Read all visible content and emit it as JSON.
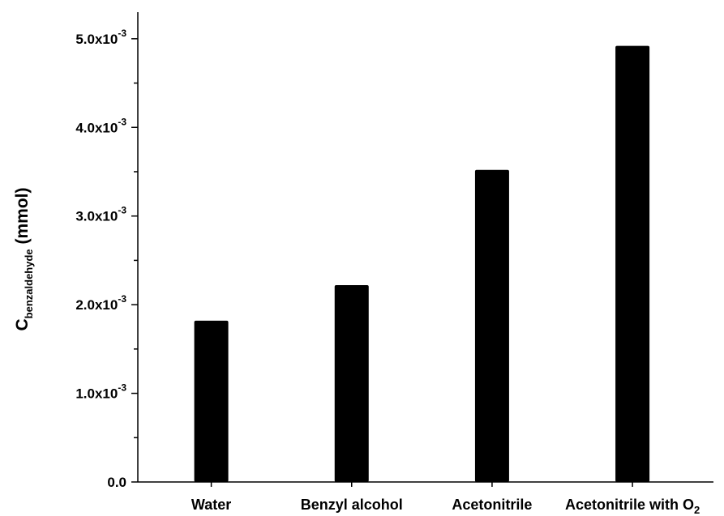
{
  "chart_data": {
    "type": "bar",
    "categories": [
      "Water",
      "Benzyl alcohol",
      "Acetonitrile",
      "Acetonitrile with O2"
    ],
    "category_labels": [
      {
        "main": "Water",
        "sub": ""
      },
      {
        "main": "Benzyl alcohol",
        "sub": ""
      },
      {
        "main": "Acetonitrile",
        "sub": ""
      },
      {
        "main": "Acetonitrile with O",
        "sub": "2"
      }
    ],
    "values": [
      0.00182,
      0.00222,
      0.00352,
      0.00492
    ],
    "ylim": [
      0,
      0.0053
    ],
    "yticks": [
      {
        "value": 0,
        "mantissa": "0.0",
        "exponent": ""
      },
      {
        "value": 0.001,
        "mantissa": "1.0x10",
        "exponent": "-3"
      },
      {
        "value": 0.002,
        "mantissa": "2.0x10",
        "exponent": "-3"
      },
      {
        "value": 0.003,
        "mantissa": "3.0x10",
        "exponent": "-3"
      },
      {
        "value": 0.004,
        "mantissa": "4.0x10",
        "exponent": "-3"
      },
      {
        "value": 0.005,
        "mantissa": "5.0x10",
        "exponent": "-3"
      }
    ],
    "ylabel": {
      "main": "C",
      "subscript": "benzaldehyde",
      "suffix": " (mmol)"
    },
    "xlabel": "",
    "title": "",
    "bar_color": "#000000",
    "grid": false,
    "legend": "none"
  }
}
